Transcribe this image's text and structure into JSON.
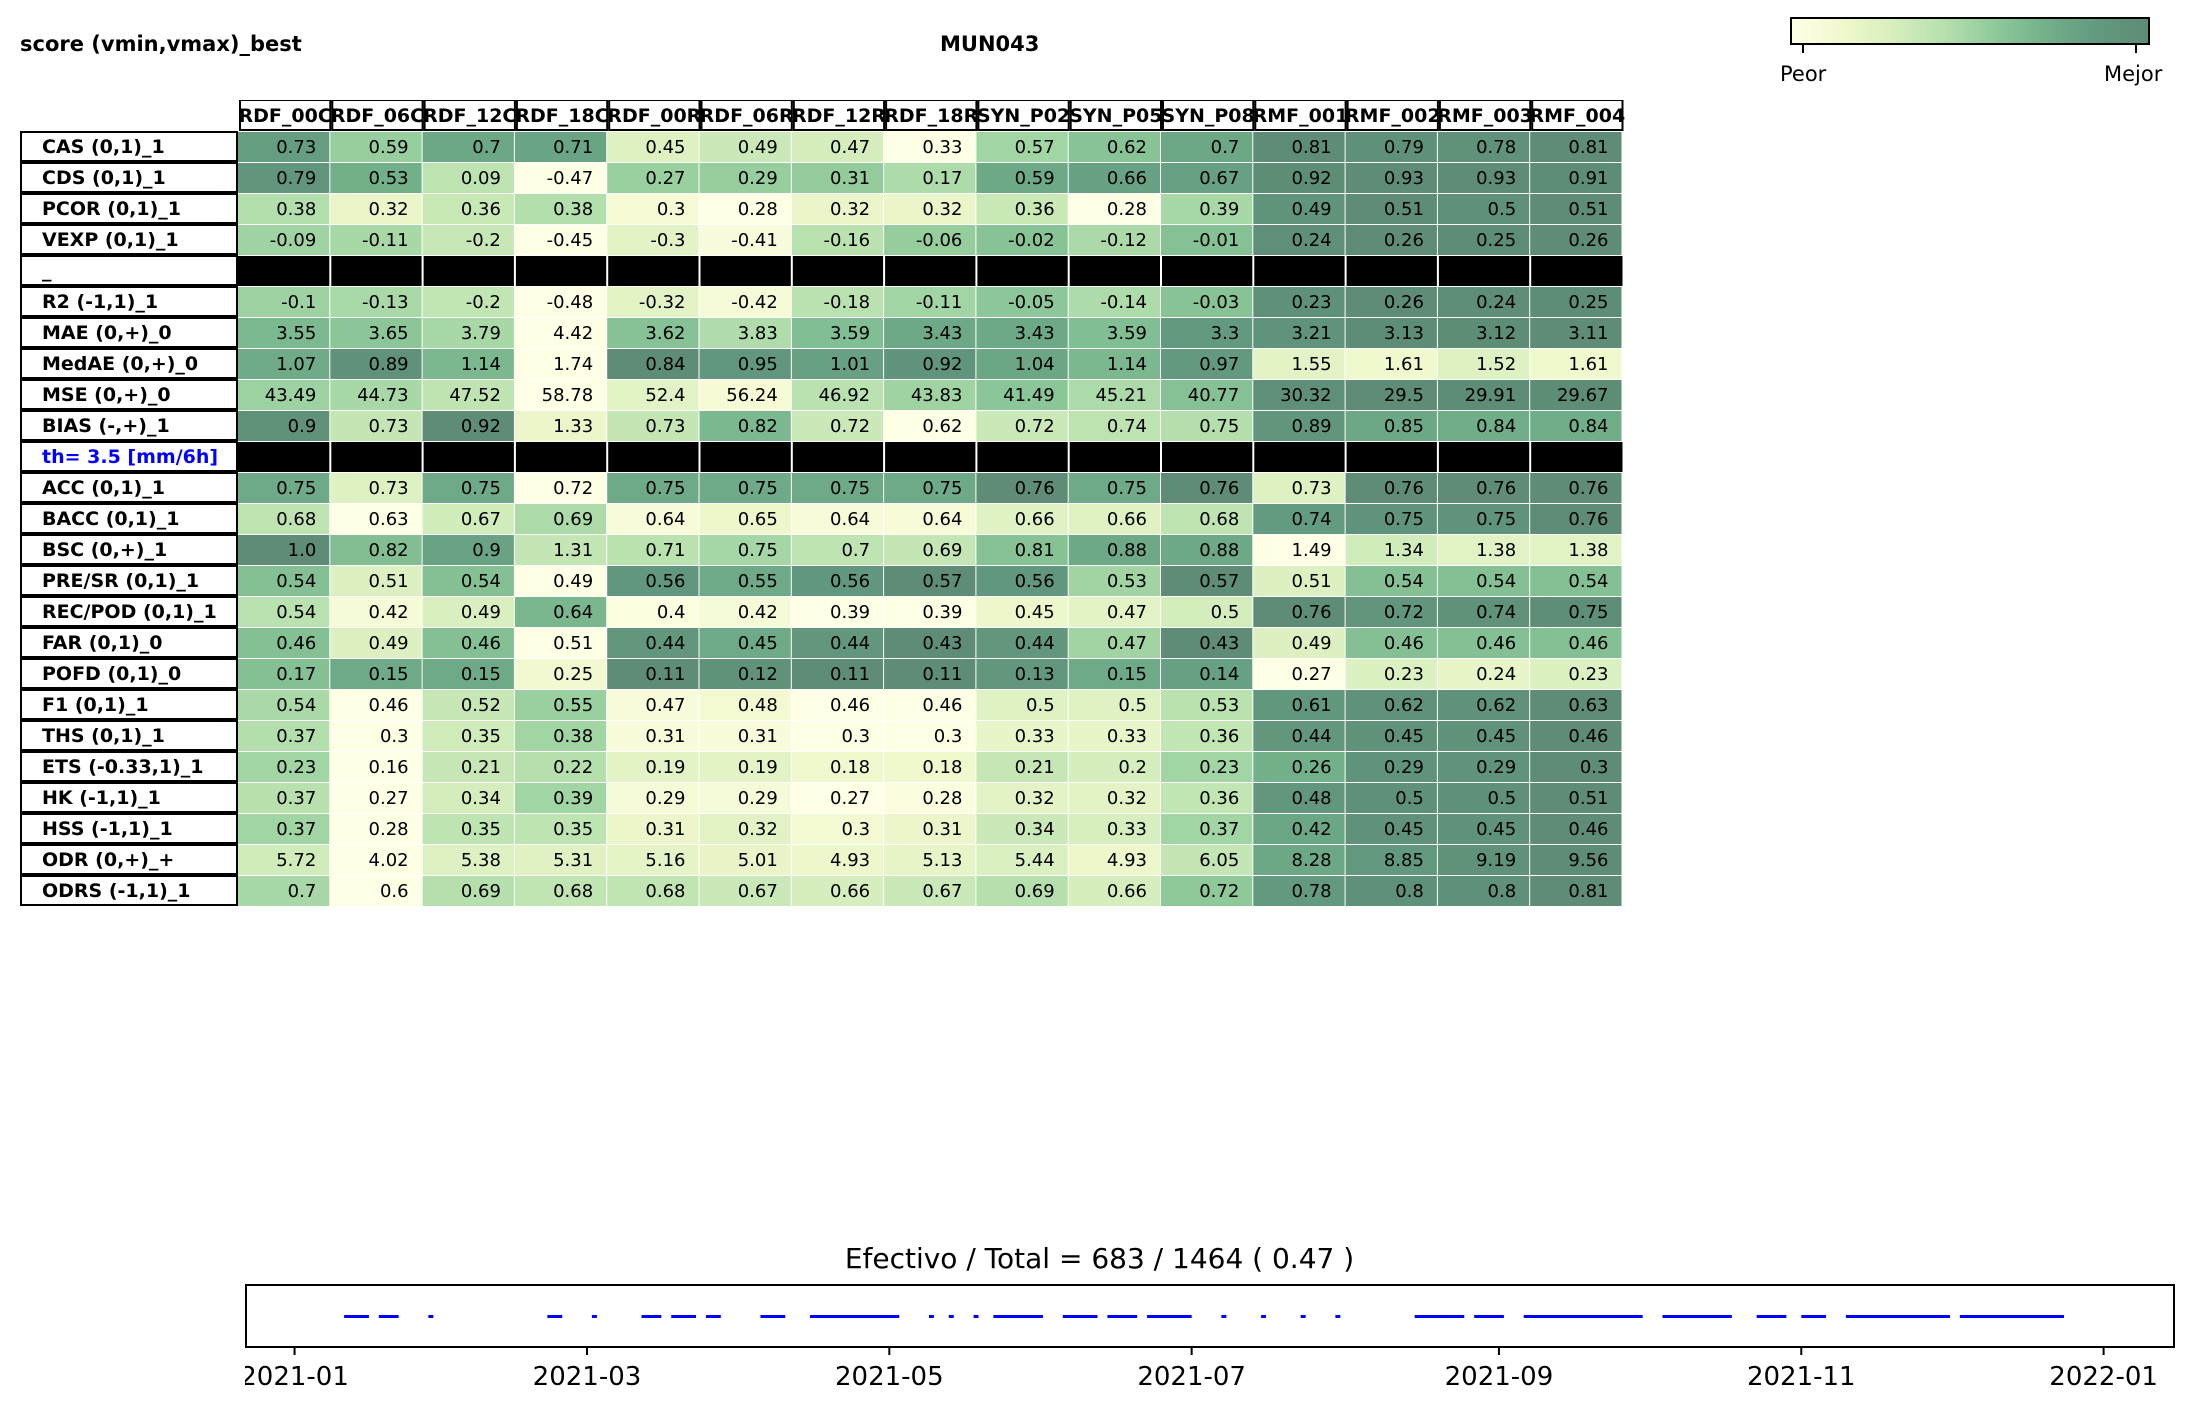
{
  "header": {
    "left_title": "score (vmin,vmax)_best",
    "center_title": "MUN043",
    "colorbar": {
      "low_label": "Peor",
      "high_label": "Mejor",
      "low_color": "#ffffe5",
      "high_color": "#5e8c76"
    }
  },
  "chart_data": {
    "type": "heatmap",
    "columns": [
      "RDF_00C",
      "RDF_06C",
      "RDF_12C",
      "RDF_18C",
      "RDF_00R",
      "RDF_06R",
      "RDF_12R",
      "RDF_18R",
      "SYN_P02",
      "SYN_P05",
      "SYN_P08",
      "RMF_001",
      "RMF_002",
      "RMF_003",
      "RMF_004"
    ],
    "rows": [
      {
        "label": "CAS (0,1)_1",
        "values": [
          "0.73",
          "0.59",
          "0.7",
          "0.71",
          "0.45",
          "0.49",
          "0.47",
          "0.33",
          "0.57",
          "0.62",
          "0.7",
          "0.81",
          "0.79",
          "0.78",
          "0.81"
        ]
      },
      {
        "label": "CDS (0,1)_1",
        "values": [
          "0.79",
          "0.53",
          "0.09",
          "-0.47",
          "0.27",
          "0.29",
          "0.31",
          "0.17",
          "0.59",
          "0.66",
          "0.67",
          "0.92",
          "0.93",
          "0.93",
          "0.91"
        ]
      },
      {
        "label": "PCOR (0,1)_1",
        "values": [
          "0.38",
          "0.32",
          "0.36",
          "0.38",
          "0.3",
          "0.28",
          "0.32",
          "0.32",
          "0.36",
          "0.28",
          "0.39",
          "0.49",
          "0.51",
          "0.5",
          "0.51"
        ]
      },
      {
        "label": "VEXP (0,1)_1",
        "values": [
          "-0.09",
          "-0.11",
          "-0.2",
          "-0.45",
          "-0.3",
          "-0.41",
          "-0.16",
          "-0.06",
          "-0.02",
          "-0.12",
          "-0.01",
          "0.24",
          "0.26",
          "0.25",
          "0.26"
        ]
      },
      {
        "label": "_",
        "separator": true
      },
      {
        "label": "R2 (-1,1)_1",
        "values": [
          "-0.1",
          "-0.13",
          "-0.2",
          "-0.48",
          "-0.32",
          "-0.42",
          "-0.18",
          "-0.11",
          "-0.05",
          "-0.14",
          "-0.03",
          "0.23",
          "0.26",
          "0.24",
          "0.25"
        ]
      },
      {
        "label": "MAE (0,+)_0",
        "values": [
          "3.55",
          "3.65",
          "3.79",
          "4.42",
          "3.62",
          "3.83",
          "3.59",
          "3.43",
          "3.43",
          "3.59",
          "3.3",
          "3.21",
          "3.13",
          "3.12",
          "3.11"
        ]
      },
      {
        "label": "MedAE (0,+)_0",
        "values": [
          "1.07",
          "0.89",
          "1.14",
          "1.74",
          "0.84",
          "0.95",
          "1.01",
          "0.92",
          "1.04",
          "1.14",
          "0.97",
          "1.55",
          "1.61",
          "1.52",
          "1.61"
        ]
      },
      {
        "label": "MSE (0,+)_0",
        "values": [
          "43.49",
          "44.73",
          "47.52",
          "58.78",
          "52.4",
          "56.24",
          "46.92",
          "43.83",
          "41.49",
          "45.21",
          "40.77",
          "30.32",
          "29.5",
          "29.91",
          "29.67"
        ]
      },
      {
        "label": "BIAS (-,+)_1",
        "values": [
          "0.9",
          "0.73",
          "0.92",
          "1.33",
          "0.73",
          "0.82",
          "0.72",
          "0.62",
          "0.72",
          "0.74",
          "0.75",
          "0.89",
          "0.85",
          "0.84",
          "0.84"
        ]
      },
      {
        "label": "th= 3.5 [mm/6h]",
        "separator": true,
        "highlight": true
      },
      {
        "label": "ACC (0,1)_1",
        "values": [
          "0.75",
          "0.73",
          "0.75",
          "0.72",
          "0.75",
          "0.75",
          "0.75",
          "0.75",
          "0.76",
          "0.75",
          "0.76",
          "0.73",
          "0.76",
          "0.76",
          "0.76"
        ]
      },
      {
        "label": "BACC (0,1)_1",
        "values": [
          "0.68",
          "0.63",
          "0.67",
          "0.69",
          "0.64",
          "0.65",
          "0.64",
          "0.64",
          "0.66",
          "0.66",
          "0.68",
          "0.74",
          "0.75",
          "0.75",
          "0.76"
        ]
      },
      {
        "label": "BSC (0,+)_1",
        "values": [
          "1.0",
          "0.82",
          "0.9",
          "1.31",
          "0.71",
          "0.75",
          "0.7",
          "0.69",
          "0.81",
          "0.88",
          "0.88",
          "1.49",
          "1.34",
          "1.38",
          "1.38"
        ]
      },
      {
        "label": "PRE/SR (0,1)_1",
        "values": [
          "0.54",
          "0.51",
          "0.54",
          "0.49",
          "0.56",
          "0.55",
          "0.56",
          "0.57",
          "0.56",
          "0.53",
          "0.57",
          "0.51",
          "0.54",
          "0.54",
          "0.54"
        ]
      },
      {
        "label": "REC/POD (0,1)_1",
        "values": [
          "0.54",
          "0.42",
          "0.49",
          "0.64",
          "0.4",
          "0.42",
          "0.39",
          "0.39",
          "0.45",
          "0.47",
          "0.5",
          "0.76",
          "0.72",
          "0.74",
          "0.75"
        ]
      },
      {
        "label": "FAR (0,1)_0",
        "values": [
          "0.46",
          "0.49",
          "0.46",
          "0.51",
          "0.44",
          "0.45",
          "0.44",
          "0.43",
          "0.44",
          "0.47",
          "0.43",
          "0.49",
          "0.46",
          "0.46",
          "0.46"
        ]
      },
      {
        "label": "POFD (0,1)_0",
        "values": [
          "0.17",
          "0.15",
          "0.15",
          "0.25",
          "0.11",
          "0.12",
          "0.11",
          "0.11",
          "0.13",
          "0.15",
          "0.14",
          "0.27",
          "0.23",
          "0.24",
          "0.23"
        ]
      },
      {
        "label": "F1 (0,1)_1",
        "values": [
          "0.54",
          "0.46",
          "0.52",
          "0.55",
          "0.47",
          "0.48",
          "0.46",
          "0.46",
          "0.5",
          "0.5",
          "0.53",
          "0.61",
          "0.62",
          "0.62",
          "0.63"
        ]
      },
      {
        "label": "THS (0,1)_1",
        "values": [
          "0.37",
          "0.3",
          "0.35",
          "0.38",
          "0.31",
          "0.31",
          "0.3",
          "0.3",
          "0.33",
          "0.33",
          "0.36",
          "0.44",
          "0.45",
          "0.45",
          "0.46"
        ]
      },
      {
        "label": "ETS (-0.33,1)_1",
        "values": [
          "0.23",
          "0.16",
          "0.21",
          "0.22",
          "0.19",
          "0.19",
          "0.18",
          "0.18",
          "0.21",
          "0.2",
          "0.23",
          "0.26",
          "0.29",
          "0.29",
          "0.3"
        ]
      },
      {
        "label": "HK (-1,1)_1",
        "values": [
          "0.37",
          "0.27",
          "0.34",
          "0.39",
          "0.29",
          "0.29",
          "0.27",
          "0.28",
          "0.32",
          "0.32",
          "0.36",
          "0.48",
          "0.5",
          "0.5",
          "0.51"
        ]
      },
      {
        "label": "HSS (-1,1)_1",
        "values": [
          "0.37",
          "0.28",
          "0.35",
          "0.35",
          "0.31",
          "0.32",
          "0.3",
          "0.31",
          "0.34",
          "0.33",
          "0.37",
          "0.42",
          "0.45",
          "0.45",
          "0.46"
        ]
      },
      {
        "label": "ODR (0,+)_+",
        "values": [
          "5.72",
          "4.02",
          "5.38",
          "5.31",
          "5.16",
          "5.01",
          "4.93",
          "5.13",
          "5.44",
          "4.93",
          "6.05",
          "8.28",
          "8.85",
          "9.19",
          "9.56"
        ]
      },
      {
        "label": "ODRS (-1,1)_1",
        "values": [
          "0.7",
          "0.6",
          "0.69",
          "0.68",
          "0.68",
          "0.67",
          "0.66",
          "0.67",
          "0.69",
          "0.66",
          "0.72",
          "0.78",
          "0.8",
          "0.8",
          "0.81"
        ]
      }
    ],
    "colormap": [
      "#ffffe5",
      "#f0f8cd",
      "#d6eebd",
      "#b5e0ad",
      "#8fc99a",
      "#72b08a",
      "#62997f",
      "#5e8c76"
    ],
    "timeline": {
      "title": "Efectivo / Total  =  683 / 1464 ( 0.47 )",
      "x_ticks": [
        "2021-01",
        "2021-03",
        "2021-05",
        "2021-07",
        "2021-09",
        "2021-11",
        "2022-01"
      ],
      "x_range": [
        "2020-12-22",
        "2022-01-15"
      ],
      "series_color": "#0000ff",
      "segments": [
        [
          "2021-01-11",
          "2021-01-16"
        ],
        [
          "2021-01-18",
          "2021-01-22"
        ],
        [
          "2021-01-28",
          "2021-01-29"
        ],
        [
          "2021-02-21",
          "2021-02-24"
        ],
        [
          "2021-03-02",
          "2021-03-03"
        ],
        [
          "2021-03-12",
          "2021-03-16"
        ],
        [
          "2021-03-18",
          "2021-03-23"
        ],
        [
          "2021-03-25",
          "2021-03-28"
        ],
        [
          "2021-04-05",
          "2021-04-10"
        ],
        [
          "2021-04-15",
          "2021-05-03"
        ],
        [
          "2021-05-09",
          "2021-05-10"
        ],
        [
          "2021-05-13",
          "2021-05-14"
        ],
        [
          "2021-05-18",
          "2021-05-19"
        ],
        [
          "2021-05-22",
          "2021-06-01"
        ],
        [
          "2021-06-05",
          "2021-06-12"
        ],
        [
          "2021-06-14",
          "2021-06-20"
        ],
        [
          "2021-06-22",
          "2021-07-01"
        ],
        [
          "2021-07-07",
          "2021-07-08"
        ],
        [
          "2021-07-15",
          "2021-07-16"
        ],
        [
          "2021-07-23",
          "2021-07-24"
        ],
        [
          "2021-07-30",
          "2021-07-31"
        ],
        [
          "2021-08-15",
          "2021-08-25"
        ],
        [
          "2021-08-27",
          "2021-09-02"
        ],
        [
          "2021-09-06",
          "2021-09-30"
        ],
        [
          "2021-10-04",
          "2021-10-18"
        ],
        [
          "2021-10-23",
          "2021-10-29"
        ],
        [
          "2021-11-01",
          "2021-11-06"
        ],
        [
          "2021-11-10",
          "2021-12-01"
        ],
        [
          "2021-12-03",
          "2021-12-24"
        ]
      ]
    }
  }
}
